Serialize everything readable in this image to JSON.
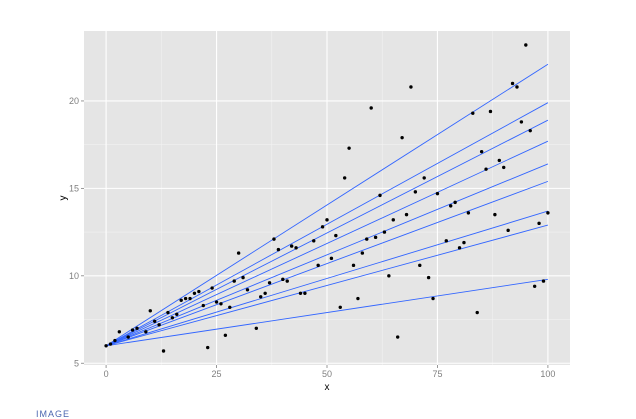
{
  "chart_data": {
    "type": "scatter",
    "title": "",
    "xlabel": "x",
    "ylabel": "y",
    "xlim": [
      -5,
      105
    ],
    "ylim": [
      4.9,
      24
    ],
    "x_ticks": [
      0,
      25,
      50,
      75,
      100
    ],
    "y_ticks": [
      5,
      10,
      15,
      20
    ],
    "x_tick_labels": [
      "0",
      "25",
      "50",
      "75",
      "100"
    ],
    "y_tick_labels": [
      "5",
      "10",
      "15",
      "20"
    ],
    "grid": true,
    "legend": "none",
    "colors": {
      "panel": "#e5e5e5",
      "grid_major": "#ffffff",
      "grid_minor": "#f2f2f2",
      "point": "#000000",
      "line": "#3366ff"
    },
    "points": [
      [
        0,
        6
      ],
      [
        1,
        6.1
      ],
      [
        2,
        6.3
      ],
      [
        3,
        6.8
      ],
      [
        5,
        6.5
      ],
      [
        6,
        6.9
      ],
      [
        7,
        7.0
      ],
      [
        9,
        6.8
      ],
      [
        10,
        8.0
      ],
      [
        11,
        7.4
      ],
      [
        12,
        7.2
      ],
      [
        13,
        5.7
      ],
      [
        14,
        7.9
      ],
      [
        15,
        7.6
      ],
      [
        16,
        7.8
      ],
      [
        17,
        8.6
      ],
      [
        18,
        8.7
      ],
      [
        19,
        8.7
      ],
      [
        20,
        9.0
      ],
      [
        21,
        9.1
      ],
      [
        22,
        8.3
      ],
      [
        23,
        5.9
      ],
      [
        24,
        9.3
      ],
      [
        25,
        8.5
      ],
      [
        26,
        8.4
      ],
      [
        27,
        6.6
      ],
      [
        28,
        8.2
      ],
      [
        29,
        9.7
      ],
      [
        30,
        11.3
      ],
      [
        31,
        9.9
      ],
      [
        32,
        9.2
      ],
      [
        34,
        7.0
      ],
      [
        35,
        8.8
      ],
      [
        36,
        9.0
      ],
      [
        37,
        9.6
      ],
      [
        38,
        12.1
      ],
      [
        39,
        11.5
      ],
      [
        40,
        9.8
      ],
      [
        41,
        9.7
      ],
      [
        42,
        11.7
      ],
      [
        43,
        11.6
      ],
      [
        44,
        9.0
      ],
      [
        45,
        9.0
      ],
      [
        47,
        12.0
      ],
      [
        48,
        10.6
      ],
      [
        49,
        12.8
      ],
      [
        50,
        13.2
      ],
      [
        51,
        11.0
      ],
      [
        52,
        12.3
      ],
      [
        53,
        8.2
      ],
      [
        54,
        15.6
      ],
      [
        55,
        17.3
      ],
      [
        56,
        10.6
      ],
      [
        57,
        8.7
      ],
      [
        58,
        11.3
      ],
      [
        59,
        12.1
      ],
      [
        60,
        19.6
      ],
      [
        61,
        12.2
      ],
      [
        62,
        14.6
      ],
      [
        63,
        12.5
      ],
      [
        64,
        10.0
      ],
      [
        65,
        13.2
      ],
      [
        66,
        6.5
      ],
      [
        67,
        17.9
      ],
      [
        68,
        13.5
      ],
      [
        69,
        20.8
      ],
      [
        70,
        14.8
      ],
      [
        71,
        10.6
      ],
      [
        72,
        15.6
      ],
      [
        73,
        9.9
      ],
      [
        74,
        8.7
      ],
      [
        75,
        14.7
      ],
      [
        77,
        12.0
      ],
      [
        78,
        14.0
      ],
      [
        79,
        14.2
      ],
      [
        80,
        11.6
      ],
      [
        81,
        11.9
      ],
      [
        82,
        13.6
      ],
      [
        83,
        19.3
      ],
      [
        84,
        7.9
      ],
      [
        85,
        17.1
      ],
      [
        86,
        16.1
      ],
      [
        87,
        19.4
      ],
      [
        88,
        13.5
      ],
      [
        89,
        16.6
      ],
      [
        90,
        16.2
      ],
      [
        91,
        12.6
      ],
      [
        92,
        21.0
      ],
      [
        93,
        20.8
      ],
      [
        94,
        18.8
      ],
      [
        95,
        23.2
      ],
      [
        96,
        18.3
      ],
      [
        97,
        9.4
      ],
      [
        98,
        13.0
      ],
      [
        99,
        9.7
      ],
      [
        100,
        13.6
      ]
    ],
    "lines": [
      {
        "x": [
          0,
          100
        ],
        "y": [
          6.0,
          22.1
        ]
      },
      {
        "x": [
          0,
          100
        ],
        "y": [
          6.0,
          19.9
        ]
      },
      {
        "x": [
          0,
          100
        ],
        "y": [
          6.0,
          18.9
        ]
      },
      {
        "x": [
          0,
          100
        ],
        "y": [
          6.0,
          17.7
        ]
      },
      {
        "x": [
          0,
          100
        ],
        "y": [
          6.0,
          16.4
        ]
      },
      {
        "x": [
          0,
          100
        ],
        "y": [
          6.0,
          15.4
        ]
      },
      {
        "x": [
          0,
          100
        ],
        "y": [
          6.0,
          13.7
        ]
      },
      {
        "x": [
          0,
          100
        ],
        "y": [
          6.0,
          12.9
        ]
      },
      {
        "x": [
          0,
          100
        ],
        "y": [
          6.0,
          9.8
        ]
      }
    ]
  },
  "caption": "IMAGE"
}
